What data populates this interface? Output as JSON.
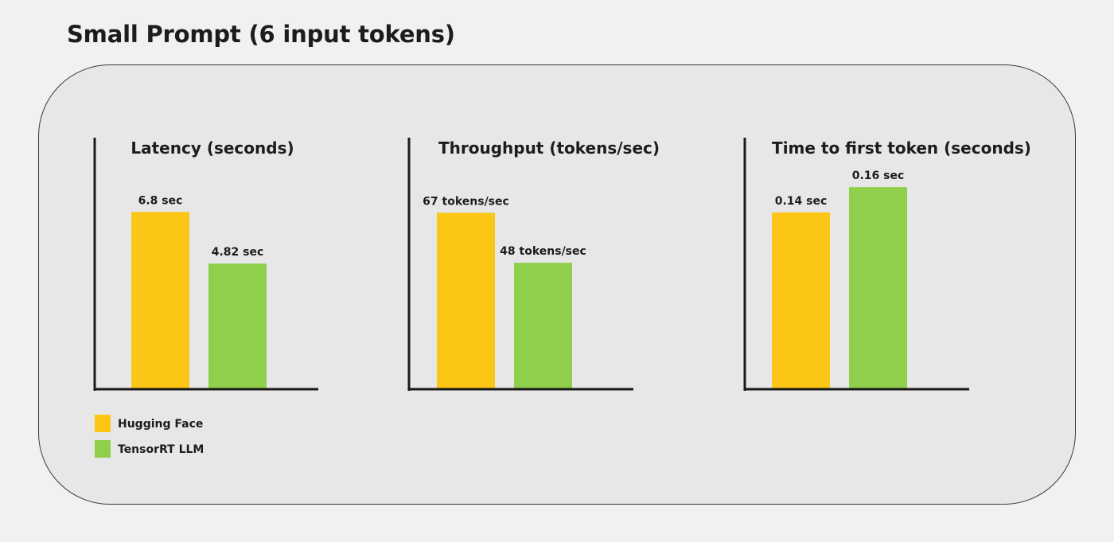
{
  "page": {
    "title": "Small Prompt (6 input tokens)"
  },
  "legend": [
    {
      "name": "Hugging Face",
      "color": "#fbc616"
    },
    {
      "name": "TensorRT LLM",
      "color": "#8fcf4c"
    }
  ],
  "chart_data": [
    {
      "type": "bar",
      "title": "Latency (seconds)",
      "categories": [
        "Hugging Face",
        "TensorRT LLM"
      ],
      "values": [
        6.8,
        4.82
      ],
      "value_labels": [
        "6.8 sec",
        "4.82 sec"
      ],
      "colors": [
        "#fbc616",
        "#8fcf4c"
      ],
      "ylim": [
        0,
        9.5
      ],
      "grid": false,
      "legend_placement": "bottom-left"
    },
    {
      "type": "bar",
      "title": "Throughput (tokens/sec)",
      "categories": [
        "Hugging Face",
        "TensorRT LLM"
      ],
      "values": [
        67,
        48
      ],
      "value_labels": [
        "67 tokens/sec",
        "48 tokens/sec"
      ],
      "colors": [
        "#fbc616",
        "#8fcf4c"
      ],
      "ylim": [
        0,
        94
      ],
      "grid": false
    },
    {
      "type": "bar",
      "title": "Time to first token (seconds)",
      "categories": [
        "Hugging Face",
        "TensorRT LLM"
      ],
      "values": [
        0.14,
        0.16
      ],
      "value_labels": [
        "0.14 sec",
        "0.16 sec"
      ],
      "colors": [
        "#fbc616",
        "#8fcf4c"
      ],
      "ylim": [
        0,
        0.196
      ],
      "grid": false
    }
  ]
}
